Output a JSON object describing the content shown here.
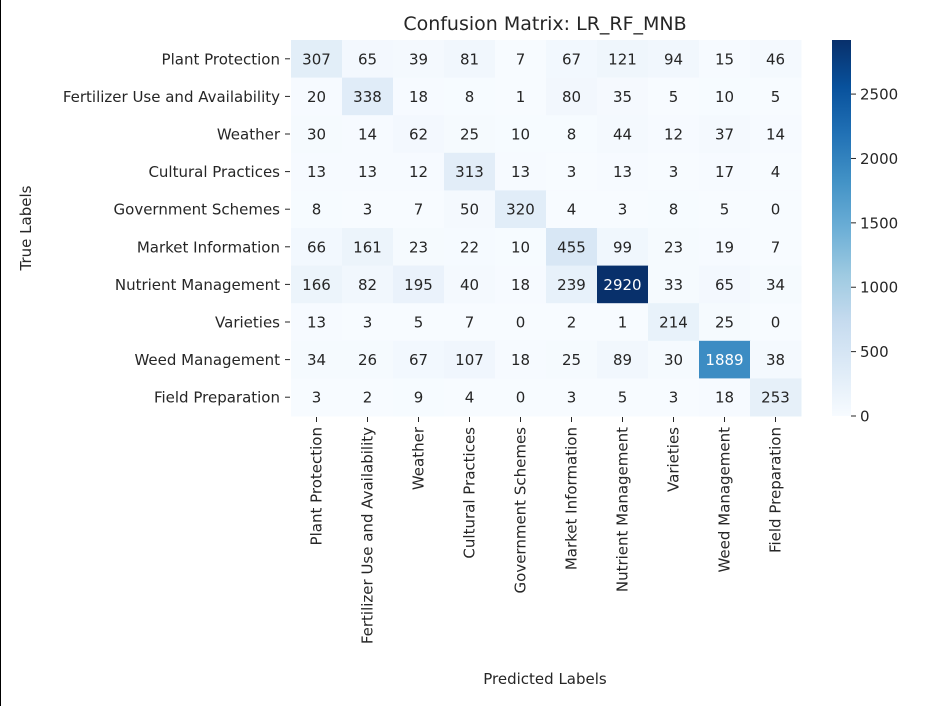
{
  "chart_data": {
    "type": "heatmap",
    "title": "Confusion Matrix: LR_RF_MNB",
    "xlabel": "Predicted Labels",
    "ylabel": "True Labels",
    "row_labels": [
      "Plant Protection",
      "Fertilizer Use and Availability",
      "Weather",
      "Cultural Practices",
      "Government Schemes",
      "Market Information",
      "Nutrient Management",
      "Varieties",
      "Weed Management",
      "Field Preparation"
    ],
    "col_labels": [
      "Plant Protection",
      "Fertilizer Use and Availability",
      "Weather",
      "Cultural Practices",
      "Government Schemes",
      "Market Information",
      "Nutrient Management",
      "Varieties",
      "Weed Management",
      "Field Preparation"
    ],
    "values": [
      [
        307,
        65,
        39,
        81,
        7,
        67,
        121,
        94,
        15,
        46
      ],
      [
        20,
        338,
        18,
        8,
        1,
        80,
        35,
        5,
        10,
        5
      ],
      [
        30,
        14,
        62,
        25,
        10,
        8,
        44,
        12,
        37,
        14
      ],
      [
        13,
        13,
        12,
        313,
        13,
        3,
        13,
        3,
        17,
        4
      ],
      [
        8,
        3,
        7,
        50,
        320,
        4,
        3,
        8,
        5,
        0
      ],
      [
        66,
        161,
        23,
        22,
        10,
        455,
        99,
        23,
        19,
        7
      ],
      [
        166,
        82,
        195,
        40,
        18,
        239,
        2920,
        33,
        65,
        34
      ],
      [
        13,
        3,
        5,
        7,
        0,
        2,
        1,
        214,
        25,
        0
      ],
      [
        34,
        26,
        67,
        107,
        18,
        25,
        89,
        30,
        1889,
        38
      ],
      [
        3,
        2,
        9,
        4,
        0,
        3,
        5,
        3,
        18,
        253
      ]
    ],
    "colormap": "Blues",
    "color_range": [
      0,
      2920
    ],
    "colorbar_ticks": [
      0,
      500,
      1000,
      1500,
      2000,
      2500
    ],
    "grid": false,
    "legend": "colorbar-right"
  }
}
